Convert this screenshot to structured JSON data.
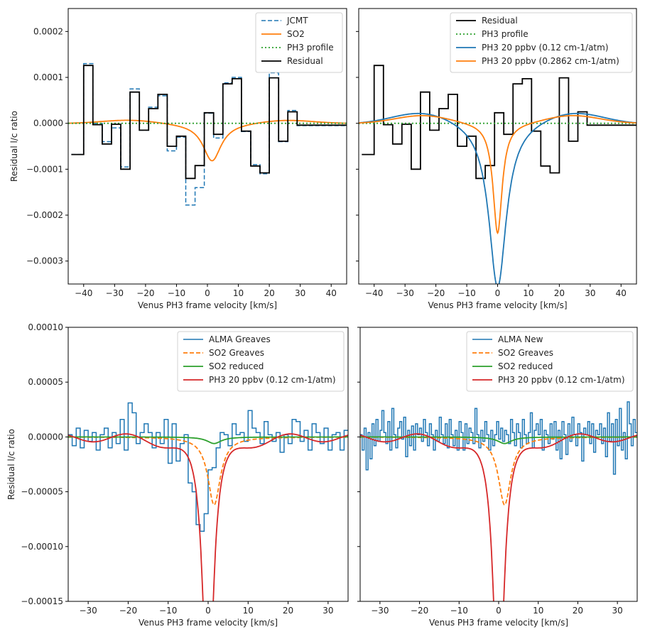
{
  "chart_data": [
    {
      "type": "line",
      "xlabel": "Venus PH3 frame velocity [km/s]",
      "ylabel": "Residual l/c ratio",
      "xlim": [
        -45,
        45
      ],
      "ylim": [
        -0.00035,
        0.00025
      ],
      "xticks": [
        -40,
        -30,
        -20,
        -10,
        0,
        10,
        20,
        30,
        40
      ],
      "xtick_labels": [
        "−40",
        "−30",
        "−20",
        "−10",
        "0",
        "10",
        "20",
        "30",
        "40"
      ],
      "yticks": [
        -0.0003,
        -0.0002,
        -0.0001,
        0,
        0.0001,
        0.0002
      ],
      "ytick_labels": [
        "−0.0003",
        "−0.0002",
        "−0.0001",
        "0.0000",
        "0.0001",
        "0.0002"
      ],
      "legend_position": "top-right",
      "series": [
        {
          "name": "JCMT",
          "kind": "step",
          "color": "#1f77b4",
          "dash": "6,3",
          "width": 1.5,
          "x": [
            -44,
            -40,
            -37,
            -34,
            -31,
            -28,
            -25,
            -22,
            -19,
            -16,
            -13,
            -10,
            -7,
            -4,
            -1,
            2,
            5,
            8,
            11,
            14,
            17,
            20,
            23,
            26,
            29,
            32,
            35,
            38,
            41
          ],
          "y": [
            -6.8e-05,
            0.00013,
            0.0,
            -4e-05,
            -1e-05,
            -9.5e-05,
            7.5e-05,
            -1.5e-05,
            3.5e-05,
            6e-05,
            -6e-05,
            -3e-05,
            -0.000178,
            -0.00014,
            2.2e-05,
            -3.2e-05,
            8.8e-05,
            0.0001,
            -1.8e-05,
            -9e-05,
            -0.00011,
            0.00011,
            -4e-05,
            2.8e-05,
            -5e-06,
            -5e-06,
            -5e-06,
            -5e-06,
            -5e-06
          ]
        },
        {
          "name": "SO2",
          "kind": "line",
          "color": "#ff7f0e",
          "dash": "",
          "width": 1.8,
          "amp": -8.2e-05,
          "center": 1.5,
          "width_kms": 3.6,
          "wing_amp": 8e-06,
          "wing_center": 25,
          "wing_sigma": 9
        },
        {
          "name": "PH3 profile",
          "kind": "flat",
          "color": "#2ca02c",
          "dash": "2,3",
          "width": 1.8,
          "y": 0
        },
        {
          "name": "Residual",
          "kind": "step",
          "color": "#000000",
          "dash": "",
          "width": 1.8,
          "x": [
            -44,
            -40,
            -37,
            -34,
            -31,
            -28,
            -25,
            -22,
            -19,
            -16,
            -13,
            -10,
            -7,
            -4,
            -1,
            2,
            5,
            8,
            11,
            14,
            17,
            20,
            23,
            26,
            29,
            32,
            35,
            38,
            41
          ],
          "y": [
            -6.8e-05,
            0.000126,
            -3e-06,
            -4.5e-05,
            -2e-06,
            -0.0001,
            6.8e-05,
            -1.5e-05,
            3.2e-05,
            6.3e-05,
            -5e-05,
            -2.8e-05,
            -0.00012,
            -9.2e-05,
            2.3e-05,
            -2.4e-05,
            8.6e-05,
            9.7e-05,
            -1.7e-05,
            -9.3e-05,
            -0.000108,
            9.9e-05,
            -3.9e-05,
            2.5e-05,
            -4e-06,
            -4e-06,
            -4e-06,
            -4e-06,
            -4e-06
          ]
        }
      ]
    },
    {
      "type": "line",
      "xlabel": "Venus PH3 frame velocity [km/s]",
      "ylabel": "",
      "xlim": [
        -45,
        45
      ],
      "ylim": [
        -0.00035,
        0.00025
      ],
      "xticks": [
        -40,
        -30,
        -20,
        -10,
        0,
        10,
        20,
        30,
        40
      ],
      "xtick_labels": [
        "−40",
        "−30",
        "−20",
        "−10",
        "0",
        "10",
        "20",
        "30",
        "40"
      ],
      "yticks": [
        -0.0003,
        -0.0002,
        -0.0001,
        0,
        0.0001,
        0.0002
      ],
      "ytick_labels": [],
      "legend_position": "top-right",
      "series": [
        {
          "name": "Residual",
          "kind": "step",
          "color": "#000000",
          "dash": "",
          "width": 1.8,
          "x": [
            -44,
            -40,
            -37,
            -34,
            -31,
            -28,
            -25,
            -22,
            -19,
            -16,
            -13,
            -10,
            -7,
            -4,
            -1,
            2,
            5,
            8,
            11,
            14,
            17,
            20,
            23,
            26,
            29,
            32,
            35,
            38,
            41
          ],
          "y": [
            -6.8e-05,
            0.000126,
            -3e-06,
            -4.5e-05,
            -2e-06,
            -0.0001,
            6.8e-05,
            -1.5e-05,
            3.2e-05,
            6.3e-05,
            -5e-05,
            -2.8e-05,
            -0.00012,
            -9.2e-05,
            2.3e-05,
            -2.4e-05,
            8.6e-05,
            9.7e-05,
            -1.7e-05,
            -9.3e-05,
            -0.000108,
            9.9e-05,
            -3.9e-05,
            2.5e-05,
            -4e-06,
            -4e-06,
            -4e-06,
            -4e-06,
            -4e-06
          ]
        },
        {
          "name": "PH3 profile",
          "kind": "flat",
          "color": "#2ca02c",
          "dash": "2,3",
          "width": 1.8,
          "y": 0
        },
        {
          "name": "PH3 20 ppbv (0.12 cm-1/atm)",
          "kind": "line",
          "color": "#1f77b4",
          "dash": "",
          "width": 1.8,
          "amp": -0.00036,
          "center": 0,
          "width_kms": 3.4,
          "wing_amp": 2.8e-05,
          "wing_center": 24,
          "wing_sigma": 10
        },
        {
          "name": "PH3 20 ppbv (0.2862 cm-1/atm)",
          "kind": "line",
          "color": "#ff7f0e",
          "dash": "",
          "width": 1.8,
          "amp": -0.00024,
          "center": 0,
          "width_kms": 1.8,
          "wing_amp": 1.8e-05,
          "wing_center": 24,
          "wing_sigma": 9
        }
      ]
    },
    {
      "type": "line",
      "xlabel": "Venus PH3 frame velocity [km/s]",
      "ylabel": "Residual l/c ratio",
      "xlim": [
        -35,
        35
      ],
      "ylim": [
        -0.00015,
        0.0001
      ],
      "xticks": [
        -30,
        -20,
        -10,
        0,
        10,
        20,
        30
      ],
      "xtick_labels": [
        "−30",
        "−20",
        "−10",
        "0",
        "10",
        "20",
        "30"
      ],
      "yticks": [
        -0.00015,
        -0.0001,
        -5e-05,
        0,
        5e-05,
        0.0001
      ],
      "ytick_labels": [
        "−0.00015",
        "−0.00010",
        "−0.00005",
        "0.00000",
        "0.00005",
        "0.00010"
      ],
      "legend_position": "top-right",
      "series": [
        {
          "name": "ALMA Greaves",
          "kind": "step",
          "color": "#1f77b4",
          "dash": "",
          "width": 1.5,
          "x": [
            -35,
            -34,
            -33,
            -32,
            -31,
            -30,
            -29,
            -28,
            -27,
            -26,
            -25,
            -24,
            -23,
            -22,
            -21,
            -20,
            -19,
            -18,
            -17,
            -16,
            -15,
            -14,
            -13,
            -12,
            -11,
            -10,
            -9,
            -8,
            -7,
            -6,
            -5,
            -4,
            -3,
            -2,
            -1,
            0,
            1,
            2,
            3,
            4,
            5,
            6,
            7,
            8,
            9,
            10,
            11,
            12,
            13,
            14,
            15,
            16,
            17,
            18,
            19,
            20,
            21,
            22,
            23,
            24,
            25,
            26,
            27,
            28,
            29,
            30,
            31,
            32,
            33,
            34
          ],
          "y": [
            2e-06,
            -8e-06,
            8e-06,
            -1e-05,
            6e-06,
            -4e-06,
            4e-06,
            -1.2e-05,
            2e-06,
            8e-06,
            -1e-05,
            4e-06,
            -6e-06,
            1.6e-05,
            -1.2e-05,
            3.1e-05,
            2.2e-05,
            -6e-06,
            4e-06,
            1.2e-05,
            4e-06,
            -1e-05,
            4e-06,
            -6e-06,
            1.6e-05,
            -2.4e-05,
            1.2e-05,
            -2.2e-05,
            -6e-06,
            2e-06,
            -4.2e-05,
            -5e-05,
            -8e-05,
            -8.6e-05,
            -7e-05,
            -3e-05,
            -2.8e-05,
            -1e-05,
            4e-06,
            2e-06,
            -8e-06,
            1.2e-05,
            2e-06,
            4e-06,
            -4e-06,
            2.4e-05,
            8e-06,
            4e-06,
            -6e-06,
            1.4e-05,
            2e-06,
            -4e-06,
            4e-06,
            -1.4e-05,
            2e-06,
            -6e-06,
            1.6e-05,
            1.4e-05,
            -4e-06,
            6e-06,
            -1.2e-05,
            1.2e-05,
            4e-06,
            -6e-06,
            8e-06,
            -1.2e-05,
            2e-06,
            4e-06,
            -1.2e-05,
            6e-06
          ]
        },
        {
          "name": "SO2 Greaves",
          "kind": "line",
          "color": "#ff7f0e",
          "dash": "6,3",
          "width": 1.8,
          "amp": -6.2e-05,
          "center": 1.5,
          "width_kms": 1.9,
          "wing_amp": 0.0,
          "wing_center": 20,
          "wing_sigma": 8
        },
        {
          "name": "SO2 reduced",
          "kind": "line",
          "color": "#2ca02c",
          "dash": "",
          "width": 1.8,
          "amp": -6e-06,
          "center": 1.5,
          "width_kms": 2.2,
          "wing_amp": 0.0,
          "wing_center": 20,
          "wing_sigma": 8
        },
        {
          "name": "PH3 20 ppbv (0.12 cm-1/atm)",
          "kind": "ripple",
          "color": "#d62728",
          "dash": "",
          "width": 1.8,
          "amp": -0.00025,
          "center": 0,
          "width_kms": 1.6,
          "ripple_amp": 6e-06,
          "ripple_period": 17
        }
      ]
    },
    {
      "type": "line",
      "xlabel": "Venus PH3 frame velocity [km/s]",
      "ylabel": "",
      "xlim": [
        -35,
        35
      ],
      "ylim": [
        -0.00015,
        0.0001
      ],
      "xticks": [
        -30,
        -20,
        -10,
        0,
        10,
        20,
        30
      ],
      "xtick_labels": [
        "−30",
        "−20",
        "−10",
        "0",
        "10",
        "20",
        "30"
      ],
      "yticks": [
        -0.00015,
        -0.0001,
        -5e-05,
        0,
        5e-05,
        0.0001
      ],
      "ytick_labels": [],
      "legend_position": "top-right",
      "series": [
        {
          "name": "ALMA New",
          "kind": "step",
          "color": "#1f77b4",
          "dash": "",
          "width": 1.5,
          "x": [
            -35,
            -34.5,
            -34,
            -33.5,
            -33,
            -32.5,
            -32,
            -31.5,
            -31,
            -30.5,
            -30,
            -29.5,
            -29,
            -28.5,
            -28,
            -27.5,
            -27,
            -26.5,
            -26,
            -25.5,
            -25,
            -24.5,
            -24,
            -23.5,
            -23,
            -22.5,
            -22,
            -21.5,
            -21,
            -20.5,
            -20,
            -19.5,
            -19,
            -18.5,
            -18,
            -17.5,
            -17,
            -16.5,
            -16,
            -15.5,
            -15,
            -14.5,
            -14,
            -13.5,
            -13,
            -12.5,
            -12,
            -11.5,
            -11,
            -10.5,
            -10,
            -9.5,
            -9,
            -8.5,
            -8,
            -7.5,
            -7,
            -6.5,
            -6,
            -5.5,
            -5,
            -4.5,
            -4,
            -3.5,
            -3,
            -2.5,
            -2,
            -1.5,
            -1,
            -0.5,
            0,
            0.5,
            1,
            1.5,
            2,
            2.5,
            3,
            3.5,
            4,
            4.5,
            5,
            5.5,
            6,
            6.5,
            7,
            7.5,
            8,
            8.5,
            9,
            9.5,
            10,
            10.5,
            11,
            11.5,
            12,
            12.5,
            13,
            13.5,
            14,
            14.5,
            15,
            15.5,
            16,
            16.5,
            17,
            17.5,
            18,
            18.5,
            19,
            19.5,
            20,
            20.5,
            21,
            21.5,
            22,
            22.5,
            23,
            23.5,
            24,
            24.5,
            25,
            25.5,
            26,
            26.5,
            27,
            27.5,
            28,
            28.5,
            29,
            29.5,
            30,
            30.5,
            31,
            31.5,
            32,
            32.5,
            33,
            33.5,
            34,
            34.5
          ],
          "y": [
            2e-06,
            -1.2e-05,
            8e-06,
            -3e-05,
            4e-06,
            -2e-05,
            1.2e-05,
            -8e-06,
            1.6e-05,
            -4e-06,
            6e-06,
            2.4e-05,
            4e-06,
            -6e-06,
            1.4e-05,
            -1.2e-05,
            2.6e-05,
            2e-06,
            -1e-05,
            8e-06,
            1.4e-05,
            -2e-06,
            1.8e-05,
            -1.8e-05,
            6e-06,
            -8e-06,
            1e-05,
            -1.2e-05,
            1.2e-05,
            2e-06,
            8e-06,
            -4e-06,
            1.6e-05,
            4e-06,
            -8e-06,
            1.2e-05,
            2e-06,
            -1.2e-05,
            6e-06,
            -4e-06,
            1.8e-05,
            2e-06,
            -6e-06,
            1.2e-05,
            -1e-05,
            1.6e-05,
            2e-06,
            -8e-06,
            6e-06,
            -1.2e-05,
            1.4e-05,
            4e-06,
            -1.2e-05,
            1.2e-05,
            -6e-06,
            8e-06,
            4e-06,
            -6e-06,
            2.6e-05,
            2e-06,
            -1e-05,
            6e-06,
            -4e-06,
            1.4e-05,
            2e-06,
            -1.2e-05,
            6e-06,
            -8e-06,
            2e-06,
            1.4e-05,
            -2e-06,
            8e-06,
            -4e-06,
            6e-06,
            2e-06,
            -6e-06,
            1.6e-05,
            4e-06,
            -8e-06,
            1.2e-05,
            4e-06,
            -1e-05,
            1.6e-05,
            2e-06,
            -6e-06,
            4e-06,
            2.2e-05,
            -1e-05,
            6e-06,
            1.2e-05,
            2e-06,
            1.6e-05,
            -1.2e-05,
            6e-06,
            2e-06,
            -6e-06,
            1.2e-05,
            -2e-06,
            1.4e-05,
            -1.2e-05,
            6e-06,
            -2e-05,
            1.4e-05,
            2e-06,
            -1.6e-05,
            1.2e-05,
            -4e-06,
            1.8e-05,
            2e-06,
            -8e-06,
            1.2e-05,
            4e-06,
            -2.2e-05,
            8e-06,
            2e-06,
            1.4e-05,
            -6e-06,
            1.2e-05,
            -1.4e-05,
            6e-06,
            2e-06,
            1.2e-05,
            -6e-06,
            8e-06,
            -1.8e-05,
            2.2e-05,
            -4e-06,
            1.2e-05,
            -3.4e-05,
            1.6e-05,
            -8e-06,
            2.6e-05,
            -1.2e-05,
            4e-06,
            -2e-05,
            3.2e-05,
            1.2e-05,
            -8e-06,
            1.6e-05,
            4e-06
          ]
        },
        {
          "name": "SO2 Greaves",
          "kind": "line",
          "color": "#ff7f0e",
          "dash": "6,3",
          "width": 1.8,
          "amp": -6.2e-05,
          "center": 1.5,
          "width_kms": 1.9,
          "wing_amp": 0.0,
          "wing_center": 20,
          "wing_sigma": 8
        },
        {
          "name": "SO2 reduced",
          "kind": "line",
          "color": "#2ca02c",
          "dash": "",
          "width": 1.8,
          "amp": -6e-06,
          "center": 1.5,
          "width_kms": 2.2,
          "wing_amp": 0.0,
          "wing_center": 20,
          "wing_sigma": 8
        },
        {
          "name": "PH3 20 ppbv (0.12 cm-1/atm)",
          "kind": "ripple",
          "color": "#d62728",
          "dash": "",
          "width": 1.8,
          "amp": -0.00025,
          "center": 0,
          "width_kms": 1.6,
          "ripple_amp": 6e-06,
          "ripple_period": 17
        }
      ]
    }
  ]
}
